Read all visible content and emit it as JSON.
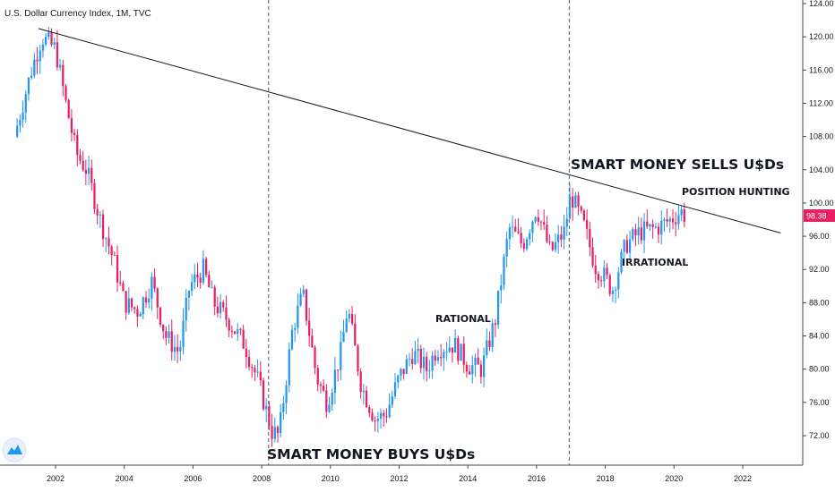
{
  "chart_data": {
    "type": "candlestick",
    "title": "U.S. Dollar Currency Index, 1M, TVC",
    "x_ticks": [
      "2002",
      "2004",
      "2006",
      "2008",
      "2010",
      "2012",
      "2014",
      "2016",
      "2018",
      "2020",
      "2022"
    ],
    "y_ticks": [
      "72.00",
      "76.00",
      "80.00",
      "84.00",
      "88.00",
      "92.00",
      "96.00",
      "100.00",
      "104.00",
      "108.00",
      "112.00",
      "116.00",
      "120.00",
      "124.00"
    ],
    "ylim": [
      68,
      124.5
    ],
    "xlim": [
      2000.8,
      2023.1
    ],
    "last_price": "98.38",
    "colors": {
      "up": "#2196f3",
      "down": "#e91e63",
      "trendline": "#131722",
      "price_tag": "#e91e63"
    },
    "trendline": {
      "from": [
        2001.5,
        121.0
      ],
      "to": [
        2023.1,
        96.4
      ]
    },
    "vertical_markers": [
      2008.2,
      2016.95
    ],
    "annotations": [
      {
        "text": "SMART MONEY BUYS U$Ds",
        "size": "big"
      },
      {
        "text": "SMART MONEY SELLS U$Ds",
        "size": "big"
      },
      {
        "text": "POSITION HUNTING",
        "size": "small"
      },
      {
        "text": "IRRATIONAL",
        "size": "small"
      },
      {
        "text": "RATIONAL",
        "size": "small"
      }
    ],
    "monthly_close_anchors": [
      [
        2000.8,
        108.0
      ],
      [
        2001.3,
        116.0
      ],
      [
        2001.6,
        120.0
      ],
      [
        2002.0,
        118.5
      ],
      [
        2002.3,
        112.0
      ],
      [
        2002.6,
        106.0
      ],
      [
        2002.9,
        104.0
      ],
      [
        2003.3,
        98.0
      ],
      [
        2003.7,
        93.0
      ],
      [
        2004.0,
        88.0
      ],
      [
        2004.4,
        87.0
      ],
      [
        2004.8,
        90.5
      ],
      [
        2005.2,
        84.0
      ],
      [
        2005.6,
        82.0
      ],
      [
        2005.9,
        90.0
      ],
      [
        2006.3,
        92.0
      ],
      [
        2006.6,
        88.0
      ],
      [
        2007.0,
        86.0
      ],
      [
        2007.5,
        83.0
      ],
      [
        2007.9,
        78.5
      ],
      [
        2008.3,
        72.5
      ],
      [
        2008.5,
        72.0
      ],
      [
        2008.9,
        85.0
      ],
      [
        2009.2,
        89.0
      ],
      [
        2009.6,
        79.0
      ],
      [
        2009.9,
        76.0
      ],
      [
        2010.3,
        82.0
      ],
      [
        2010.5,
        87.5
      ],
      [
        2010.9,
        78.0
      ],
      [
        2011.3,
        74.0
      ],
      [
        2011.6,
        74.5
      ],
      [
        2012.0,
        79.0
      ],
      [
        2012.4,
        82.0
      ],
      [
        2012.8,
        80.0
      ],
      [
        2013.1,
        82.5
      ],
      [
        2013.6,
        83.0
      ],
      [
        2014.0,
        80.5
      ],
      [
        2014.4,
        80.0
      ],
      [
        2014.8,
        86.0
      ],
      [
        2015.2,
        97.0
      ],
      [
        2015.6,
        95.0
      ],
      [
        2016.0,
        99.5
      ],
      [
        2016.4,
        94.0
      ],
      [
        2016.8,
        96.5
      ],
      [
        2017.0,
        101.0
      ],
      [
        2017.4,
        97.0
      ],
      [
        2017.7,
        92.5
      ],
      [
        2018.0,
        91.0
      ],
      [
        2018.2,
        89.5
      ],
      [
        2018.6,
        95.0
      ],
      [
        2019.0,
        96.5
      ],
      [
        2019.5,
        97.0
      ],
      [
        2019.9,
        98.0
      ],
      [
        2020.2,
        99.0
      ],
      [
        2020.35,
        98.38
      ]
    ]
  },
  "labels": {
    "title": "U.S. Dollar Currency Index, 1M, TVC",
    "price_tag": "98.38",
    "ann_buy": "SMART MONEY BUYS U$Ds",
    "ann_sell": "SMART MONEY SELLS U$Ds",
    "ann_hunt": "POSITION HUNTING",
    "ann_irr": "IRRATIONAL",
    "ann_rat": "RATIONAL"
  }
}
